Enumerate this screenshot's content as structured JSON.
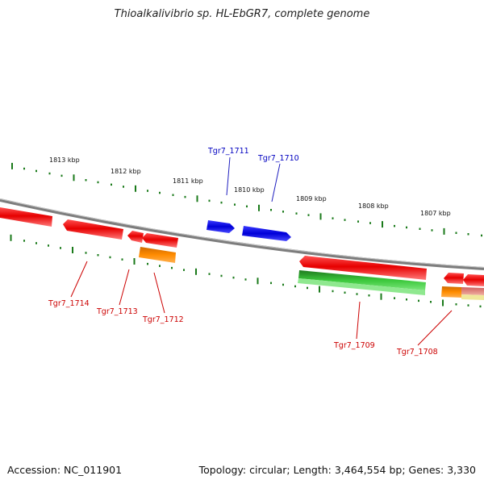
{
  "title": "Thioalkalivibrio sp. HL-EbGR7, complete genome",
  "footer": {
    "accession": "Accession: NC_011901",
    "summary": "Topology: circular; Length: 3,464,554 bp; Genes: 3,330"
  },
  "scale_labels": [
    "1813 kbp",
    "1812 kbp",
    "1811 kbp",
    "1810 kbp",
    "1809 kbp",
    "1808 kbp",
    "1807 kbp"
  ],
  "colors": {
    "forward_gene": "#0a0ae0",
    "reverse_gene": "#e60000",
    "rna_gene": "#ff8c00",
    "green_feature": "#22aa22",
    "pink_feature": "#e89090",
    "backbone": "#7d7d7d",
    "tick": "#1a7a1a"
  },
  "gene_labels": [
    {
      "name": "Tgr7_1711",
      "strand": "forward"
    },
    {
      "name": "Tgr7_1710",
      "strand": "forward"
    },
    {
      "name": "Tgr7_1714",
      "strand": "reverse"
    },
    {
      "name": "Tgr7_1713",
      "strand": "reverse"
    },
    {
      "name": "Tgr7_1712",
      "strand": "reverse"
    },
    {
      "name": "Tgr7_1709",
      "strand": "reverse"
    },
    {
      "name": "Tgr7_1708",
      "strand": "reverse"
    }
  ]
}
